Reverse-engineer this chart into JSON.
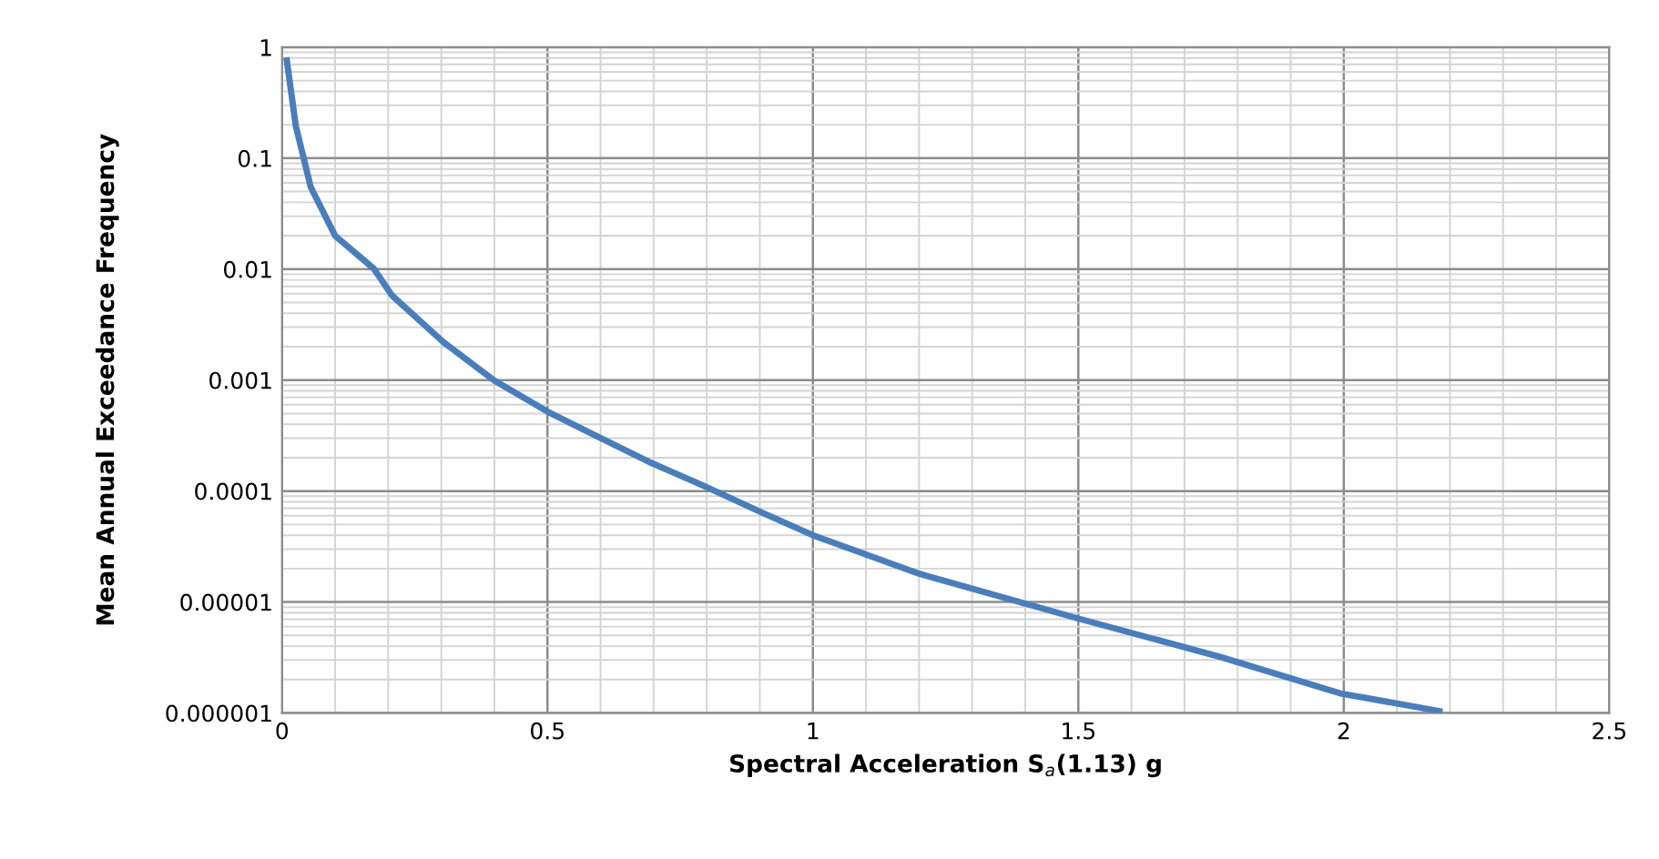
{
  "chart_data": {
    "type": "line",
    "xlabel": "Spectral Acceleration S$_{a}$(1.13) g",
    "ylabel": "Mean Annual Exceedance Frequency",
    "log": "y",
    "grid": true,
    "marker": "none",
    "line_style": "solid",
    "xlim": [
      0,
      2.5
    ],
    "xticks": [
      0,
      0.5,
      1,
      1.5,
      2,
      2.5
    ],
    "ylim": [
      1e-06,
      1
    ],
    "yticks": [
      1,
      0.1,
      0.01,
      0.001,
      0.0001,
      {
        "value": 1e-05,
        "label": "0.00001"
      },
      {
        "value": 1e-06,
        "label": "0.000001"
      }
    ],
    "series": [
      {
        "color": "#4a7ebb",
        "x": [
          0.009,
          0.026,
          0.054,
          0.1,
          0.173,
          0.207,
          0.304,
          0.4,
          0.5,
          0.6,
          0.695,
          0.797,
          0.91,
          1.0,
          1.2,
          1.5,
          1.767,
          1.994,
          2.18
        ],
        "values": [
          0.76,
          0.195,
          0.055,
          0.02,
          0.0101,
          0.0058,
          0.0022,
          0.00099,
          0.00052,
          0.0003,
          0.00018,
          0.00011,
          6.2e-05,
          4e-05,
          1.8e-05,
          7.1e-06,
          3.2e-06,
          1.5e-06,
          1.04e-06
        ]
      }
    ]
  }
}
